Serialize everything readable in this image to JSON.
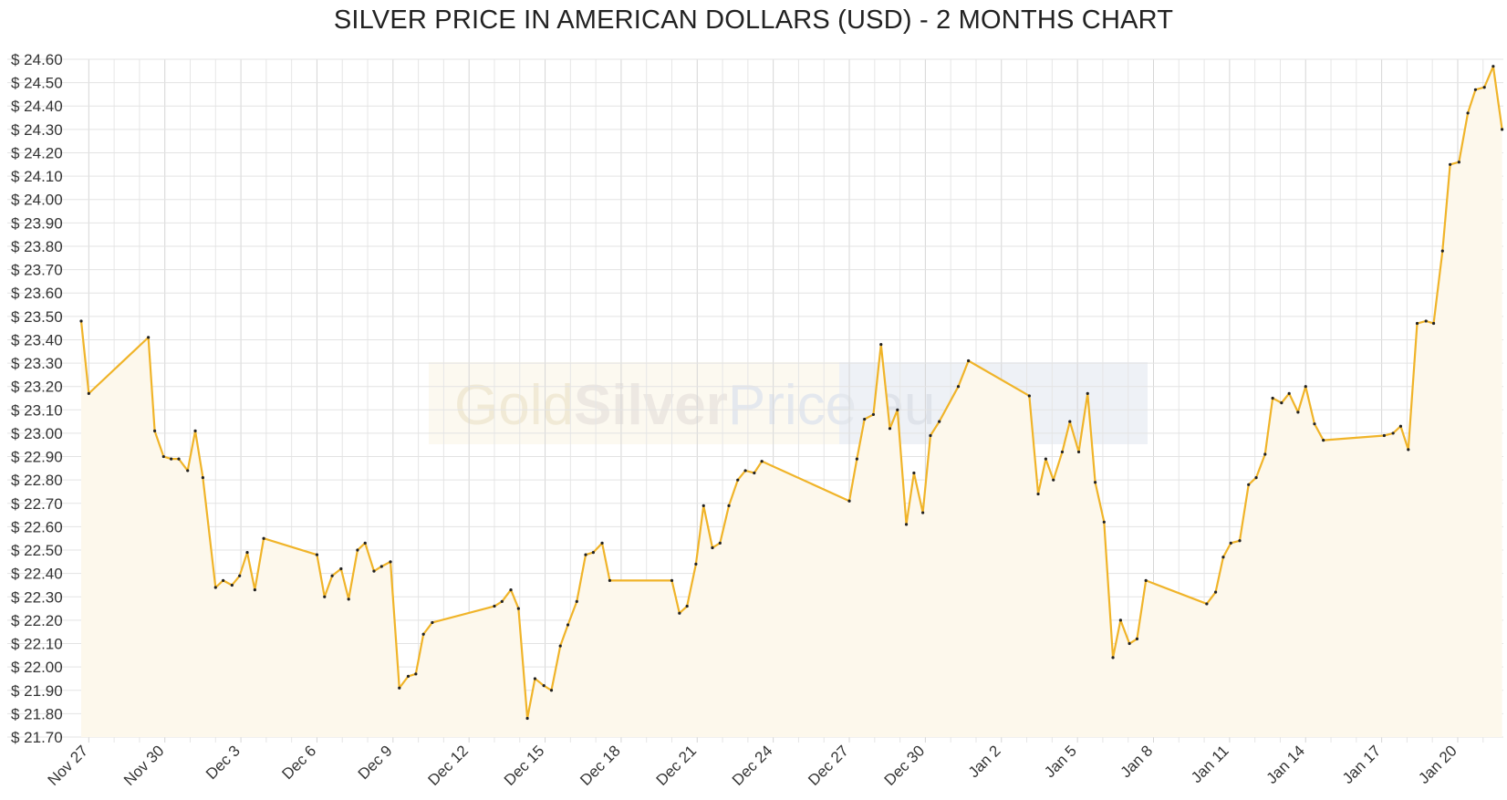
{
  "chart_data": {
    "type": "line",
    "title": "SILVER PRICE IN AMERICAN DOLLARS (USD) - 2 MONTHS CHART",
    "ylim": [
      21.7,
      24.6
    ],
    "ytick_step": 0.1,
    "ytick_prefix": "$ ",
    "grid": true,
    "legend": "none",
    "x_range": [
      -0.3,
      55.8
    ],
    "x_axis": {
      "ticks": [
        {
          "x": 0,
          "label": "Nov 27"
        },
        {
          "x": 3,
          "label": "Nov 30"
        },
        {
          "x": 6,
          "label": "Dec 3"
        },
        {
          "x": 9,
          "label": "Dec 6"
        },
        {
          "x": 12,
          "label": "Dec 9"
        },
        {
          "x": 15,
          "label": "Dec 12"
        },
        {
          "x": 18,
          "label": "Dec 15"
        },
        {
          "x": 21,
          "label": "Dec 18"
        },
        {
          "x": 24,
          "label": "Dec 21"
        },
        {
          "x": 27,
          "label": "Dec 24"
        },
        {
          "x": 30,
          "label": "Dec 27"
        },
        {
          "x": 33,
          "label": "Dec 30"
        },
        {
          "x": 36,
          "label": "Jan 2"
        },
        {
          "x": 39,
          "label": "Jan 5"
        },
        {
          "x": 42,
          "label": "Jan 8"
        },
        {
          "x": 45,
          "label": "Jan 11"
        },
        {
          "x": 48,
          "label": "Jan 14"
        },
        {
          "x": 51,
          "label": "Jan 17"
        },
        {
          "x": 54,
          "label": "Jan 20"
        }
      ],
      "minor_step": 1
    },
    "watermark": {
      "part1": "Gold",
      "part2": "Silver",
      "part3": "Price",
      "part4": ".eu"
    },
    "series": [
      {
        "color": "#f0b429",
        "fill": "#fdf8ec",
        "points": [
          [
            -0.3,
            23.48
          ],
          [
            0.0,
            23.17
          ],
          [
            2.35,
            23.41
          ],
          [
            2.6,
            23.01
          ],
          [
            2.95,
            22.9
          ],
          [
            3.25,
            22.89
          ],
          [
            3.55,
            22.89
          ],
          [
            3.9,
            22.84
          ],
          [
            4.2,
            23.01
          ],
          [
            4.5,
            22.81
          ],
          [
            5.0,
            22.34
          ],
          [
            5.3,
            22.37
          ],
          [
            5.65,
            22.35
          ],
          [
            5.95,
            22.39
          ],
          [
            6.25,
            22.49
          ],
          [
            6.55,
            22.33
          ],
          [
            6.9,
            22.55
          ],
          [
            9.0,
            22.48
          ],
          [
            9.3,
            22.3
          ],
          [
            9.6,
            22.39
          ],
          [
            9.95,
            22.42
          ],
          [
            10.25,
            22.29
          ],
          [
            10.6,
            22.5
          ],
          [
            10.9,
            22.53
          ],
          [
            11.25,
            22.41
          ],
          [
            11.55,
            22.43
          ],
          [
            11.9,
            22.45
          ],
          [
            12.25,
            21.91
          ],
          [
            12.6,
            21.96
          ],
          [
            12.9,
            21.97
          ],
          [
            13.2,
            22.14
          ],
          [
            13.55,
            22.19
          ],
          [
            16.0,
            22.26
          ],
          [
            16.3,
            22.28
          ],
          [
            16.65,
            22.33
          ],
          [
            16.95,
            22.25
          ],
          [
            17.3,
            21.78
          ],
          [
            17.6,
            21.95
          ],
          [
            17.95,
            21.92
          ],
          [
            18.25,
            21.9
          ],
          [
            18.6,
            22.09
          ],
          [
            18.9,
            22.18
          ],
          [
            19.25,
            22.28
          ],
          [
            19.6,
            22.48
          ],
          [
            19.9,
            22.49
          ],
          [
            20.25,
            22.53
          ],
          [
            20.55,
            22.37
          ],
          [
            23.0,
            22.37
          ],
          [
            23.3,
            22.23
          ],
          [
            23.6,
            22.26
          ],
          [
            23.95,
            22.44
          ],
          [
            24.25,
            22.69
          ],
          [
            24.6,
            22.51
          ],
          [
            24.9,
            22.53
          ],
          [
            25.25,
            22.69
          ],
          [
            25.6,
            22.8
          ],
          [
            25.9,
            22.84
          ],
          [
            26.25,
            22.83
          ],
          [
            26.55,
            22.88
          ],
          [
            30.0,
            22.71
          ],
          [
            30.3,
            22.89
          ],
          [
            30.6,
            23.06
          ],
          [
            30.95,
            23.08
          ],
          [
            31.25,
            23.38
          ],
          [
            31.6,
            23.02
          ],
          [
            31.9,
            23.1
          ],
          [
            32.25,
            22.61
          ],
          [
            32.55,
            22.83
          ],
          [
            32.9,
            22.66
          ],
          [
            33.2,
            22.99
          ],
          [
            33.55,
            23.05
          ],
          [
            34.3,
            23.2
          ],
          [
            34.7,
            23.31
          ],
          [
            37.1,
            23.16
          ],
          [
            37.45,
            22.74
          ],
          [
            37.75,
            22.89
          ],
          [
            38.05,
            22.8
          ],
          [
            38.4,
            22.92
          ],
          [
            38.7,
            23.05
          ],
          [
            39.05,
            22.92
          ],
          [
            39.4,
            23.17
          ],
          [
            39.7,
            22.79
          ],
          [
            40.05,
            22.62
          ],
          [
            40.4,
            22.04
          ],
          [
            40.7,
            22.2
          ],
          [
            41.05,
            22.1
          ],
          [
            41.35,
            22.12
          ],
          [
            41.7,
            22.37
          ],
          [
            44.1,
            22.27
          ],
          [
            44.45,
            22.32
          ],
          [
            44.75,
            22.47
          ],
          [
            45.05,
            22.53
          ],
          [
            45.4,
            22.54
          ],
          [
            45.75,
            22.78
          ],
          [
            46.05,
            22.81
          ],
          [
            46.4,
            22.91
          ],
          [
            46.7,
            23.15
          ],
          [
            47.05,
            23.13
          ],
          [
            47.35,
            23.17
          ],
          [
            47.7,
            23.09
          ],
          [
            48.0,
            23.2
          ],
          [
            48.35,
            23.04
          ],
          [
            48.7,
            22.97
          ],
          [
            51.1,
            22.99
          ],
          [
            51.45,
            23.0
          ],
          [
            51.75,
            23.03
          ],
          [
            52.05,
            22.93
          ],
          [
            52.4,
            23.47
          ],
          [
            52.75,
            23.48
          ],
          [
            53.05,
            23.47
          ],
          [
            53.4,
            23.78
          ],
          [
            53.7,
            24.15
          ],
          [
            54.05,
            24.16
          ],
          [
            54.4,
            24.37
          ],
          [
            54.7,
            24.47
          ],
          [
            55.05,
            24.48
          ],
          [
            55.4,
            24.57
          ],
          [
            55.75,
            24.3
          ]
        ]
      }
    ]
  }
}
